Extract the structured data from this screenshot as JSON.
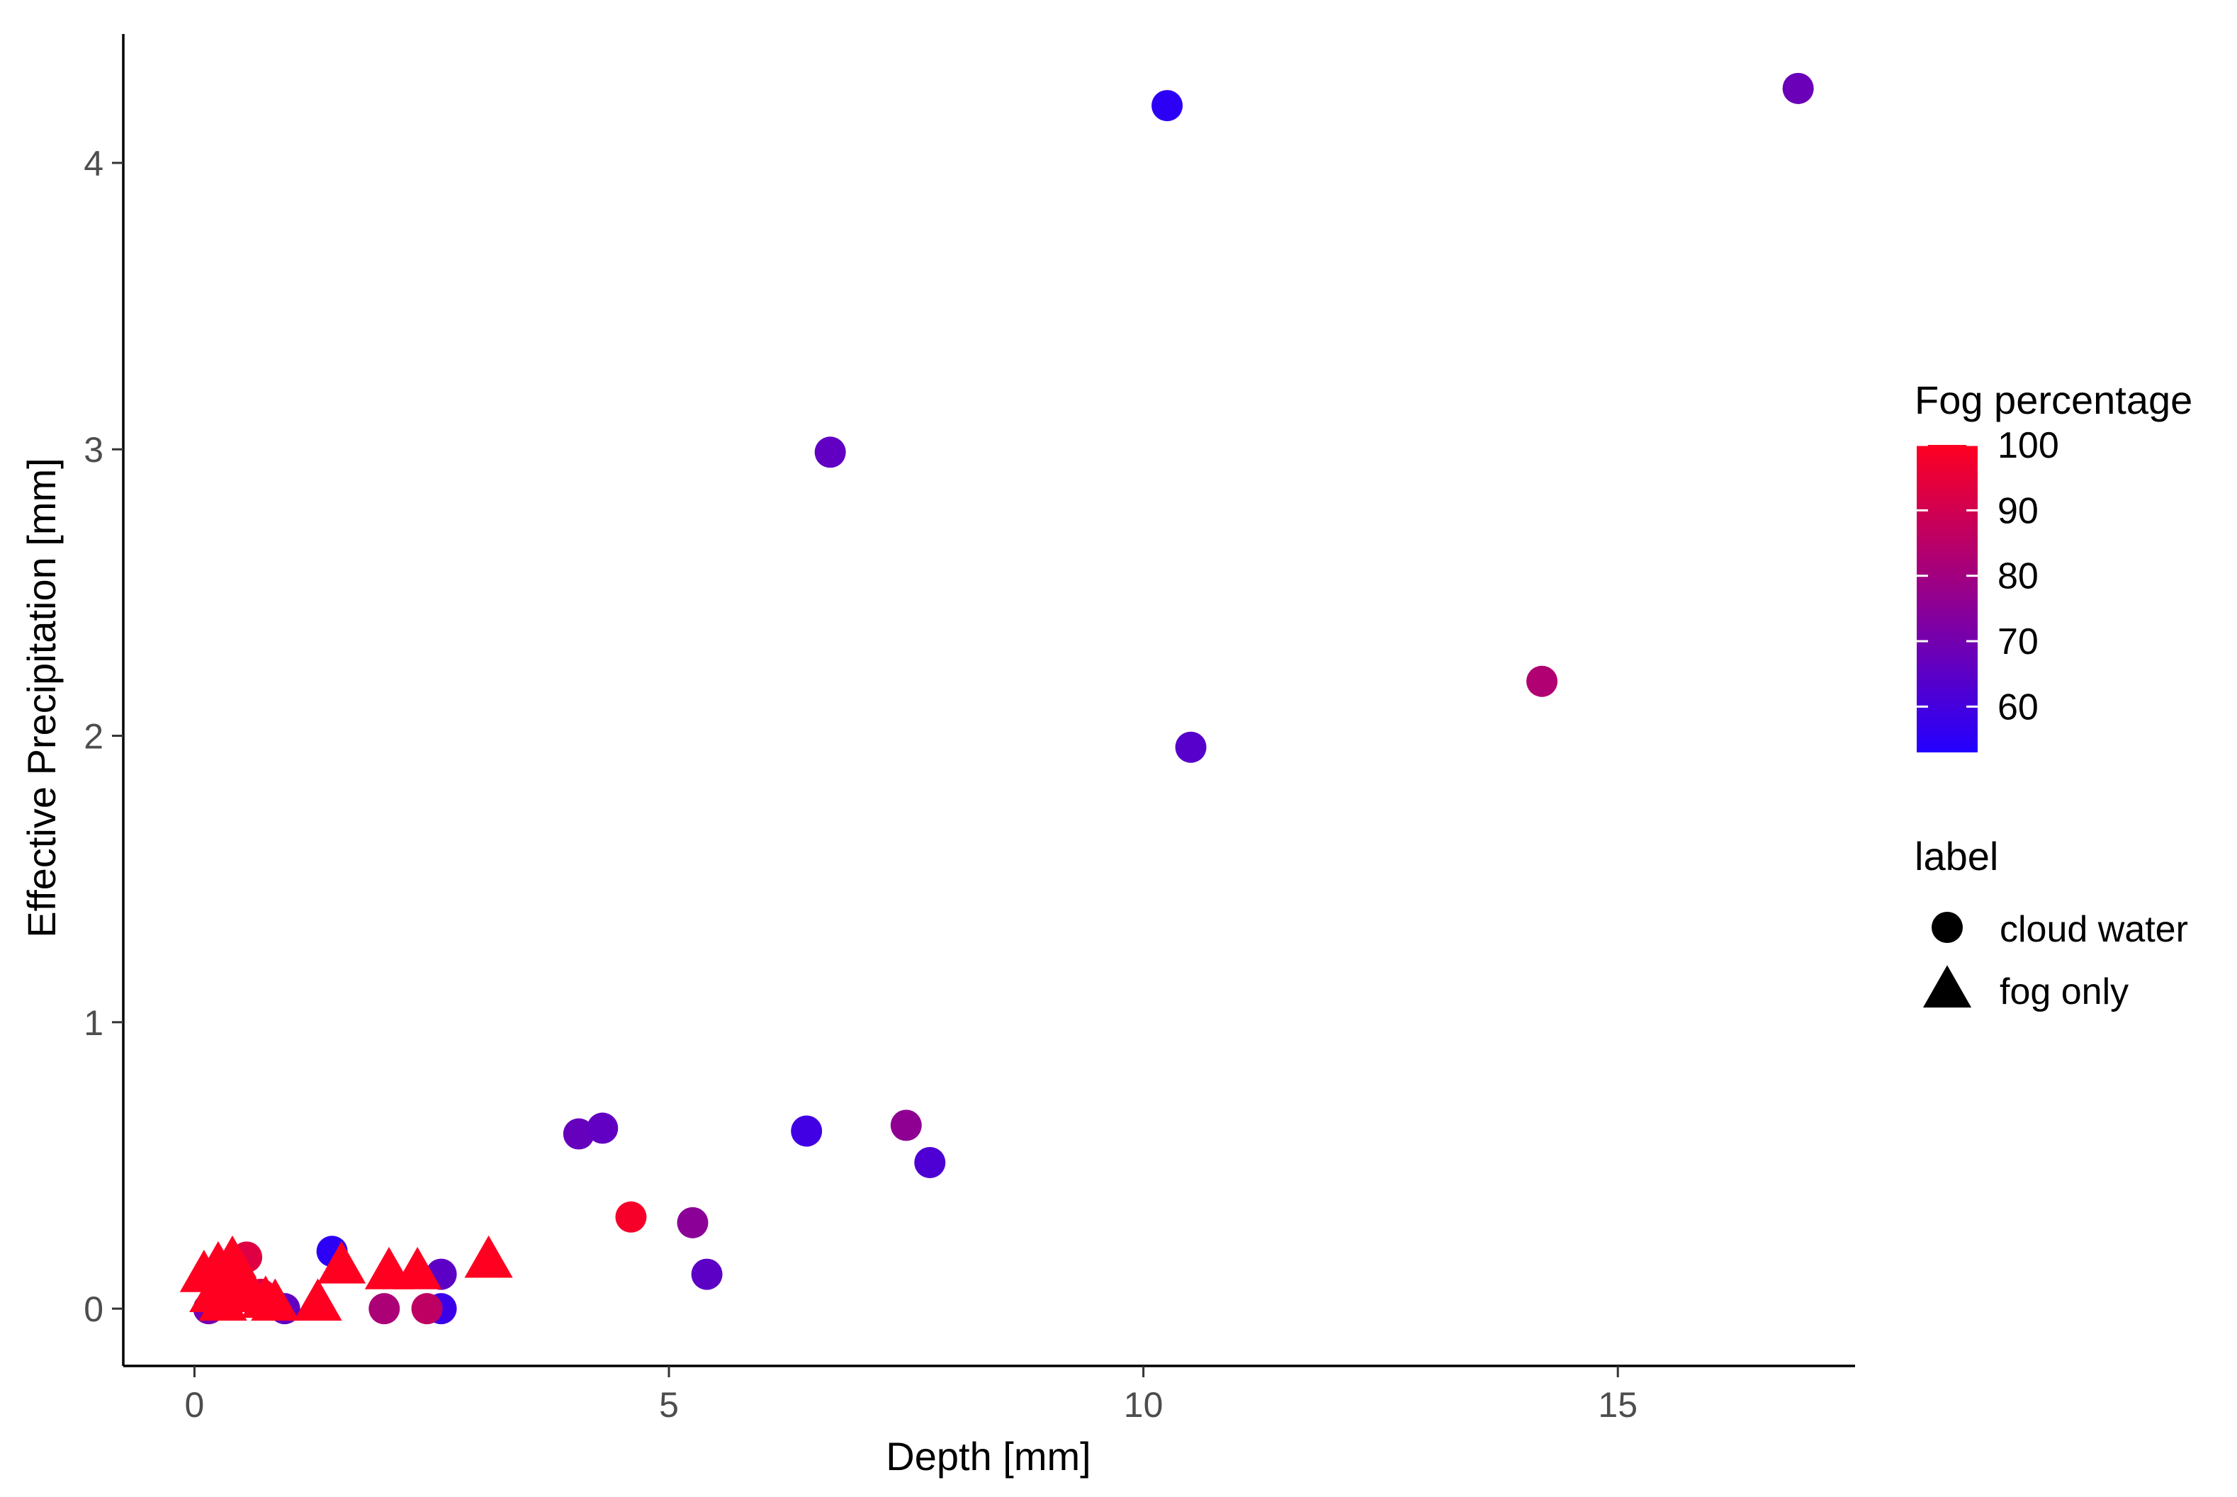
{
  "chart_data": {
    "type": "scatter",
    "xlabel": "Depth [mm]",
    "ylabel": "Effective Precipitation [mm]",
    "xlim": [
      -0.75,
      17.5
    ],
    "ylim": [
      -0.2,
      4.45
    ],
    "xticks": [
      0,
      5,
      10,
      15
    ],
    "yticks": [
      0,
      1,
      2,
      3,
      4
    ],
    "grid": false,
    "color_scale": {
      "title": "Fog percentage",
      "min": 53,
      "max": 100,
      "ticks": [
        100,
        90,
        80,
        70,
        60
      ],
      "low_color": "#2400ff",
      "high_color": "#ff0021"
    },
    "shape_legend": {
      "title": "label",
      "items": [
        {
          "label": "cloud water",
          "shape": "circle"
        },
        {
          "label": "fog only",
          "shape": "triangle"
        }
      ]
    },
    "points": [
      {
        "x": 10.25,
        "y": 4.2,
        "fog": 55,
        "label": "cloud water"
      },
      {
        "x": 16.9,
        "y": 4.26,
        "fog": 68,
        "label": "cloud water"
      },
      {
        "x": 6.7,
        "y": 2.99,
        "fog": 66,
        "label": "cloud water"
      },
      {
        "x": 14.2,
        "y": 2.19,
        "fog": 83,
        "label": "cloud water"
      },
      {
        "x": 10.5,
        "y": 1.96,
        "fog": 64,
        "label": "cloud water"
      },
      {
        "x": 4.05,
        "y": 0.61,
        "fog": 67,
        "label": "cloud water"
      },
      {
        "x": 4.3,
        "y": 0.63,
        "fog": 66,
        "label": "cloud water"
      },
      {
        "x": 6.45,
        "y": 0.62,
        "fog": 59,
        "label": "cloud water"
      },
      {
        "x": 7.5,
        "y": 0.64,
        "fog": 76,
        "label": "cloud water"
      },
      {
        "x": 7.75,
        "y": 0.51,
        "fog": 62,
        "label": "cloud water"
      },
      {
        "x": 4.6,
        "y": 0.32,
        "fog": 98,
        "label": "cloud water"
      },
      {
        "x": 5.25,
        "y": 0.3,
        "fog": 75,
        "label": "cloud water"
      },
      {
        "x": 5.4,
        "y": 0.12,
        "fog": 65,
        "label": "cloud water"
      },
      {
        "x": 1.45,
        "y": 0.2,
        "fog": 55,
        "label": "cloud water"
      },
      {
        "x": 2.6,
        "y": 0.12,
        "fog": 65,
        "label": "cloud water"
      },
      {
        "x": 2.6,
        "y": 0.0,
        "fog": 58,
        "label": "cloud water"
      },
      {
        "x": 2.0,
        "y": 0.0,
        "fog": 82,
        "label": "cloud water"
      },
      {
        "x": 2.45,
        "y": 0.0,
        "fog": 86,
        "label": "cloud water"
      },
      {
        "x": 0.15,
        "y": 0.0,
        "fog": 70,
        "label": "cloud water"
      },
      {
        "x": 0.95,
        "y": 0.0,
        "fog": 66,
        "label": "cloud water"
      },
      {
        "x": 0.55,
        "y": 0.18,
        "fog": 93,
        "label": "cloud water"
      },
      {
        "x": 0.35,
        "y": 0.08,
        "fog": 95,
        "label": "cloud water"
      },
      {
        "x": 0.7,
        "y": 0.05,
        "fog": 92,
        "label": "cloud water"
      },
      {
        "x": 0.1,
        "y": 0.12,
        "fog": 100,
        "label": "fog only"
      },
      {
        "x": 0.25,
        "y": 0.15,
        "fog": 100,
        "label": "fog only"
      },
      {
        "x": 0.4,
        "y": 0.17,
        "fog": 100,
        "label": "fog only"
      },
      {
        "x": 0.5,
        "y": 0.1,
        "fog": 100,
        "label": "fog only"
      },
      {
        "x": 0.6,
        "y": 0.05,
        "fog": 100,
        "label": "fog only"
      },
      {
        "x": 0.75,
        "y": 0.03,
        "fog": 100,
        "label": "fog only"
      },
      {
        "x": 0.85,
        "y": 0.02,
        "fog": 100,
        "label": "fog only"
      },
      {
        "x": 0.3,
        "y": 0.02,
        "fog": 100,
        "label": "fog only"
      },
      {
        "x": 0.2,
        "y": 0.05,
        "fog": 100,
        "label": "fog only"
      },
      {
        "x": 1.3,
        "y": 0.02,
        "fog": 100,
        "label": "fog only"
      },
      {
        "x": 1.55,
        "y": 0.15,
        "fog": 100,
        "label": "fog only"
      },
      {
        "x": 2.05,
        "y": 0.13,
        "fog": 100,
        "label": "fog only"
      },
      {
        "x": 2.35,
        "y": 0.13,
        "fog": 100,
        "label": "fog only"
      },
      {
        "x": 3.1,
        "y": 0.17,
        "fog": 100,
        "label": "fog only"
      }
    ]
  }
}
